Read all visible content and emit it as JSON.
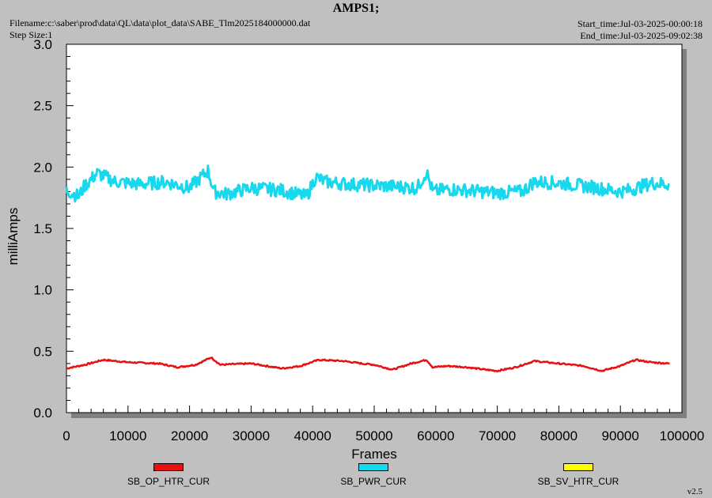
{
  "header": {
    "title": "AMPS1;",
    "filename": "Filename:c:\\saber\\prod\\data\\QL\\data\\plot_data\\SABE_Tlm2025184000000.dat",
    "step_size": "Step Size:1",
    "start_time": "Start_time:Jul-03-2025-00:00:18",
    "end_time": "End_time:Jul-03-2025-09:02:38",
    "version": "v2.5"
  },
  "chart_data": {
    "type": "line",
    "title": "AMPS1;",
    "xlabel": "Frames",
    "ylabel": "milliAmps",
    "xlim": [
      0,
      100000
    ],
    "ylim": [
      0,
      3.0
    ],
    "x_ticks": [
      "0",
      "10000",
      "20000",
      "30000",
      "40000",
      "50000",
      "60000",
      "70000",
      "80000",
      "90000",
      "100000"
    ],
    "y_ticks": [
      "0.0",
      "0.5",
      "1.0",
      "1.5",
      "2.0",
      "2.5",
      "3.0"
    ],
    "grid": false,
    "legend_position": "bottom",
    "series": [
      {
        "name": "SB_OP_HTR_CUR",
        "color": "#e81010",
        "x": [
          0,
          3000,
          6000,
          10000,
          15000,
          18000,
          21000,
          23500,
          25000,
          30000,
          35000,
          38000,
          41000,
          45000,
          48000,
          50000,
          53000,
          56000,
          58500,
          59500,
          62000,
          65000,
          68000,
          70000,
          73000,
          76000,
          80000,
          84000,
          87000,
          90000,
          92500,
          95000,
          98000
        ],
        "y": [
          0.36,
          0.39,
          0.43,
          0.41,
          0.4,
          0.37,
          0.39,
          0.45,
          0.39,
          0.4,
          0.36,
          0.38,
          0.43,
          0.42,
          0.4,
          0.39,
          0.35,
          0.4,
          0.43,
          0.37,
          0.38,
          0.37,
          0.35,
          0.34,
          0.37,
          0.42,
          0.4,
          0.38,
          0.34,
          0.38,
          0.43,
          0.41,
          0.4
        ]
      },
      {
        "name": "SB_PWR_CUR",
        "color": "#18d8ee",
        "x": [
          0,
          2000,
          3000,
          5000,
          8000,
          12000,
          16000,
          20000,
          23000,
          24000,
          26000,
          30000,
          35000,
          39000,
          40500,
          42000,
          46000,
          50000,
          54000,
          57000,
          58500,
          59500,
          62000,
          65000,
          70000,
          74000,
          76000,
          80000,
          85000,
          90000,
          92000,
          95000,
          98000
        ],
        "y": [
          1.81,
          1.76,
          1.85,
          1.95,
          1.88,
          1.86,
          1.88,
          1.83,
          1.97,
          1.8,
          1.78,
          1.83,
          1.81,
          1.76,
          1.92,
          1.88,
          1.86,
          1.85,
          1.84,
          1.83,
          1.96,
          1.8,
          1.82,
          1.81,
          1.79,
          1.8,
          1.88,
          1.87,
          1.84,
          1.8,
          1.82,
          1.87,
          1.86
        ]
      },
      {
        "name": "SB_SV_HTR_CUR",
        "color": "#ffff00",
        "x": [],
        "y": []
      }
    ]
  }
}
